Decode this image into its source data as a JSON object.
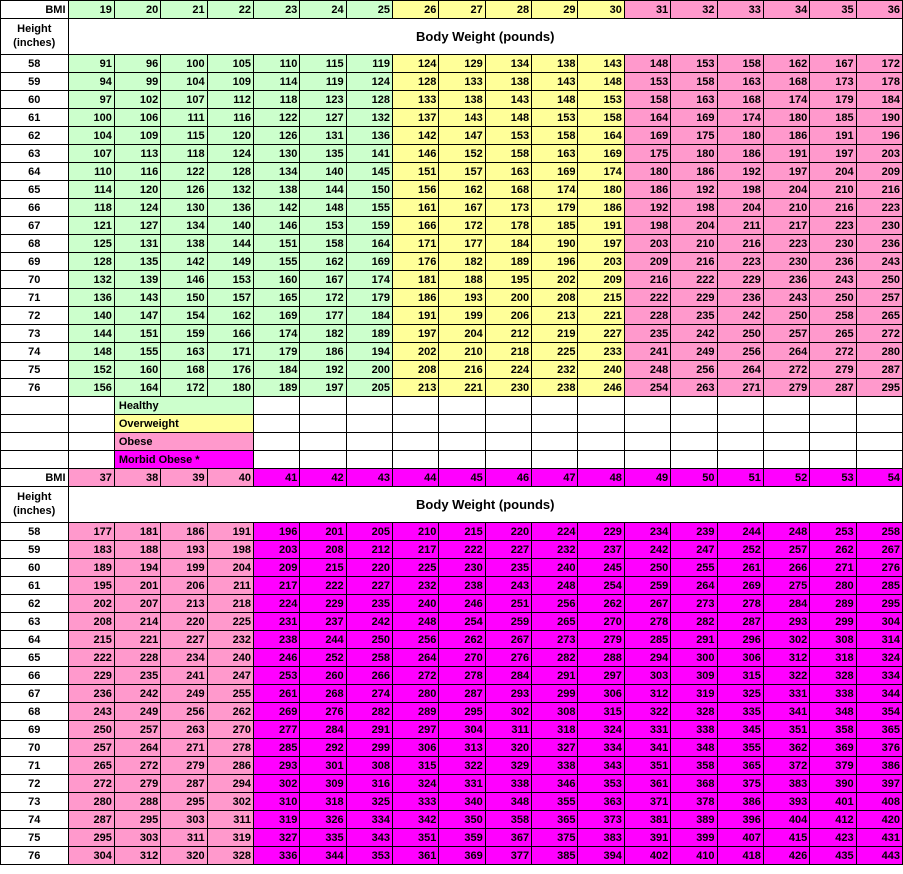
{
  "title": "Body Weight (pounds)",
  "labels": {
    "bmi": "BMI",
    "height": "Height (inches)"
  },
  "colors": {
    "healthy": "#ccffcc",
    "overweight": "#ffff99",
    "obese": "#ff99cc",
    "morbid": "#ff00ff",
    "white": "#ffffff"
  },
  "legend": [
    {
      "label": "Healthy",
      "colorKey": "healthy"
    },
    {
      "label": "Overweight",
      "colorKey": "overweight"
    },
    {
      "label": "Obese",
      "colorKey": "obese"
    },
    {
      "label": "Morbid Obese *",
      "colorKey": "morbid"
    }
  ],
  "section1": {
    "bmi": [
      19,
      20,
      21,
      22,
      23,
      24,
      25,
      26,
      27,
      28,
      29,
      30,
      31,
      32,
      33,
      34,
      35,
      36
    ],
    "bmiColors": [
      "healthy",
      "healthy",
      "healthy",
      "healthy",
      "healthy",
      "healthy",
      "healthy",
      "overweight",
      "overweight",
      "overweight",
      "overweight",
      "overweight",
      "obese",
      "obese",
      "obese",
      "obese",
      "obese",
      "obese"
    ],
    "rows": [
      {
        "h": 58,
        "w": [
          91,
          96,
          100,
          105,
          110,
          115,
          119,
          124,
          129,
          134,
          138,
          143,
          148,
          153,
          158,
          162,
          167,
          172
        ]
      },
      {
        "h": 59,
        "w": [
          94,
          99,
          104,
          109,
          114,
          119,
          124,
          128,
          133,
          138,
          143,
          148,
          153,
          158,
          163,
          168,
          173,
          178
        ]
      },
      {
        "h": 60,
        "w": [
          97,
          102,
          107,
          112,
          118,
          123,
          128,
          133,
          138,
          143,
          148,
          153,
          158,
          163,
          168,
          174,
          179,
          184
        ]
      },
      {
        "h": 61,
        "w": [
          100,
          106,
          111,
          116,
          122,
          127,
          132,
          137,
          143,
          148,
          153,
          158,
          164,
          169,
          174,
          180,
          185,
          190
        ]
      },
      {
        "h": 62,
        "w": [
          104,
          109,
          115,
          120,
          126,
          131,
          136,
          142,
          147,
          153,
          158,
          164,
          169,
          175,
          180,
          186,
          191,
          196
        ]
      },
      {
        "h": 63,
        "w": [
          107,
          113,
          118,
          124,
          130,
          135,
          141,
          146,
          152,
          158,
          163,
          169,
          175,
          180,
          186,
          191,
          197,
          203
        ]
      },
      {
        "h": 64,
        "w": [
          110,
          116,
          122,
          128,
          134,
          140,
          145,
          151,
          157,
          163,
          169,
          174,
          180,
          186,
          192,
          197,
          204,
          209
        ]
      },
      {
        "h": 65,
        "w": [
          114,
          120,
          126,
          132,
          138,
          144,
          150,
          156,
          162,
          168,
          174,
          180,
          186,
          192,
          198,
          204,
          210,
          216
        ]
      },
      {
        "h": 66,
        "w": [
          118,
          124,
          130,
          136,
          142,
          148,
          155,
          161,
          167,
          173,
          179,
          186,
          192,
          198,
          204,
          210,
          216,
          223
        ]
      },
      {
        "h": 67,
        "w": [
          121,
          127,
          134,
          140,
          146,
          153,
          159,
          166,
          172,
          178,
          185,
          191,
          198,
          204,
          211,
          217,
          223,
          230
        ]
      },
      {
        "h": 68,
        "w": [
          125,
          131,
          138,
          144,
          151,
          158,
          164,
          171,
          177,
          184,
          190,
          197,
          203,
          210,
          216,
          223,
          230,
          236
        ]
      },
      {
        "h": 69,
        "w": [
          128,
          135,
          142,
          149,
          155,
          162,
          169,
          176,
          182,
          189,
          196,
          203,
          209,
          216,
          223,
          230,
          236,
          243
        ]
      },
      {
        "h": 70,
        "w": [
          132,
          139,
          146,
          153,
          160,
          167,
          174,
          181,
          188,
          195,
          202,
          209,
          216,
          222,
          229,
          236,
          243,
          250
        ]
      },
      {
        "h": 71,
        "w": [
          136,
          143,
          150,
          157,
          165,
          172,
          179,
          186,
          193,
          200,
          208,
          215,
          222,
          229,
          236,
          243,
          250,
          257
        ]
      },
      {
        "h": 72,
        "w": [
          140,
          147,
          154,
          162,
          169,
          177,
          184,
          191,
          199,
          206,
          213,
          221,
          228,
          235,
          242,
          250,
          258,
          265
        ]
      },
      {
        "h": 73,
        "w": [
          144,
          151,
          159,
          166,
          174,
          182,
          189,
          197,
          204,
          212,
          219,
          227,
          235,
          242,
          250,
          257,
          265,
          272
        ]
      },
      {
        "h": 74,
        "w": [
          148,
          155,
          163,
          171,
          179,
          186,
          194,
          202,
          210,
          218,
          225,
          233,
          241,
          249,
          256,
          264,
          272,
          280
        ]
      },
      {
        "h": 75,
        "w": [
          152,
          160,
          168,
          176,
          184,
          192,
          200,
          208,
          216,
          224,
          232,
          240,
          248,
          256,
          264,
          272,
          279,
          287
        ]
      },
      {
        "h": 76,
        "w": [
          156,
          164,
          172,
          180,
          189,
          197,
          205,
          213,
          221,
          230,
          238,
          246,
          254,
          263,
          271,
          279,
          287,
          295
        ]
      }
    ]
  },
  "section2": {
    "bmi": [
      37,
      38,
      39,
      40,
      41,
      42,
      43,
      44,
      45,
      46,
      47,
      48,
      49,
      50,
      51,
      52,
      53,
      54
    ],
    "bmiColors": [
      "obese",
      "obese",
      "obese",
      "obese",
      "morbid",
      "morbid",
      "morbid",
      "morbid",
      "morbid",
      "morbid",
      "morbid",
      "morbid",
      "morbid",
      "morbid",
      "morbid",
      "morbid",
      "morbid",
      "morbid"
    ],
    "rows": [
      {
        "h": 58,
        "w": [
          177,
          181,
          186,
          191,
          196,
          201,
          205,
          210,
          215,
          220,
          224,
          229,
          234,
          239,
          244,
          248,
          253,
          258
        ]
      },
      {
        "h": 59,
        "w": [
          183,
          188,
          193,
          198,
          203,
          208,
          212,
          217,
          222,
          227,
          232,
          237,
          242,
          247,
          252,
          257,
          262,
          267
        ]
      },
      {
        "h": 60,
        "w": [
          189,
          194,
          199,
          204,
          209,
          215,
          220,
          225,
          230,
          235,
          240,
          245,
          250,
          255,
          261,
          266,
          271,
          276
        ]
      },
      {
        "h": 61,
        "w": [
          195,
          201,
          206,
          211,
          217,
          222,
          227,
          232,
          238,
          243,
          248,
          254,
          259,
          264,
          269,
          275,
          280,
          285
        ]
      },
      {
        "h": 62,
        "w": [
          202,
          207,
          213,
          218,
          224,
          229,
          235,
          240,
          246,
          251,
          256,
          262,
          267,
          273,
          278,
          284,
          289,
          295
        ]
      },
      {
        "h": 63,
        "w": [
          208,
          214,
          220,
          225,
          231,
          237,
          242,
          248,
          254,
          259,
          265,
          270,
          278,
          282,
          287,
          293,
          299,
          304
        ]
      },
      {
        "h": 64,
        "w": [
          215,
          221,
          227,
          232,
          238,
          244,
          250,
          256,
          262,
          267,
          273,
          279,
          285,
          291,
          296,
          302,
          308,
          314
        ]
      },
      {
        "h": 65,
        "w": [
          222,
          228,
          234,
          240,
          246,
          252,
          258,
          264,
          270,
          276,
          282,
          288,
          294,
          300,
          306,
          312,
          318,
          324
        ]
      },
      {
        "h": 66,
        "w": [
          229,
          235,
          241,
          247,
          253,
          260,
          266,
          272,
          278,
          284,
          291,
          297,
          303,
          309,
          315,
          322,
          328,
          334
        ]
      },
      {
        "h": 67,
        "w": [
          236,
          242,
          249,
          255,
          261,
          268,
          274,
          280,
          287,
          293,
          299,
          306,
          312,
          319,
          325,
          331,
          338,
          344
        ]
      },
      {
        "h": 68,
        "w": [
          243,
          249,
          256,
          262,
          269,
          276,
          282,
          289,
          295,
          302,
          308,
          315,
          322,
          328,
          335,
          341,
          348,
          354
        ]
      },
      {
        "h": 69,
        "w": [
          250,
          257,
          263,
          270,
          277,
          284,
          291,
          297,
          304,
          311,
          318,
          324,
          331,
          338,
          345,
          351,
          358,
          365
        ]
      },
      {
        "h": 70,
        "w": [
          257,
          264,
          271,
          278,
          285,
          292,
          299,
          306,
          313,
          320,
          327,
          334,
          341,
          348,
          355,
          362,
          369,
          376
        ]
      },
      {
        "h": 71,
        "w": [
          265,
          272,
          279,
          286,
          293,
          301,
          308,
          315,
          322,
          329,
          338,
          343,
          351,
          358,
          365,
          372,
          379,
          386
        ]
      },
      {
        "h": 72,
        "w": [
          272,
          279,
          287,
          294,
          302,
          309,
          316,
          324,
          331,
          338,
          346,
          353,
          361,
          368,
          375,
          383,
          390,
          397
        ]
      },
      {
        "h": 73,
        "w": [
          280,
          288,
          295,
          302,
          310,
          318,
          325,
          333,
          340,
          348,
          355,
          363,
          371,
          378,
          386,
          393,
          401,
          408
        ]
      },
      {
        "h": 74,
        "w": [
          287,
          295,
          303,
          311,
          319,
          326,
          334,
          342,
          350,
          358,
          365,
          373,
          381,
          389,
          396,
          404,
          412,
          420
        ]
      },
      {
        "h": 75,
        "w": [
          295,
          303,
          311,
          319,
          327,
          335,
          343,
          351,
          359,
          367,
          375,
          383,
          391,
          399,
          407,
          415,
          423,
          431
        ]
      },
      {
        "h": 76,
        "w": [
          304,
          312,
          320,
          328,
          336,
          344,
          353,
          361,
          369,
          377,
          385,
          394,
          402,
          410,
          418,
          426,
          435,
          443
        ]
      }
    ]
  }
}
